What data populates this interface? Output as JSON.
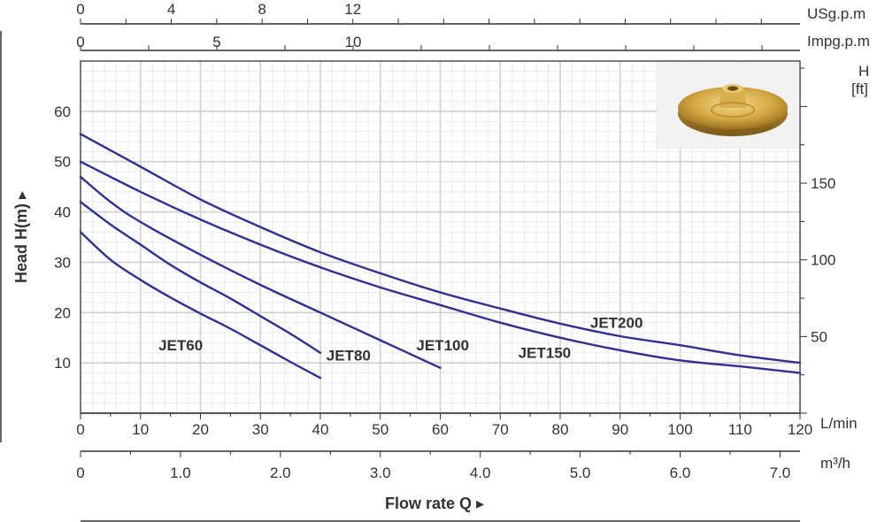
{
  "chart_data": {
    "type": "line",
    "title": "",
    "xlabel": "Flow rate Q",
    "ylabel": "Head H(m)",
    "x_unit": "L/min",
    "xlim": [
      0,
      120
    ],
    "ylim": [
      0,
      70
    ],
    "grid": true,
    "x_ticks": [
      "0",
      "10",
      "20",
      "30",
      "40",
      "50",
      "60",
      "70",
      "80",
      "90",
      "100",
      "110",
      "120"
    ],
    "y_ticks": [
      "10",
      "20",
      "30",
      "40",
      "50",
      "60"
    ],
    "secondary_axes": {
      "usgpm": {
        "unit": "USg.p.m",
        "ticks": [
          "0",
          "4",
          "8",
          "12"
        ]
      },
      "impgpm": {
        "unit": "Impg.p.m",
        "ticks": [
          "0",
          "5",
          "10"
        ]
      },
      "m3h": {
        "unit": "m³/h",
        "ticks": [
          "0",
          "1.0",
          "2.0",
          "3.0",
          "4.0",
          "5.0",
          "6.0",
          "7.0"
        ]
      },
      "head_ft": {
        "unit_line1": "H",
        "unit_line2": "[ft]",
        "ticks": [
          "50",
          "100",
          "150"
        ]
      }
    },
    "series": [
      {
        "name": "JET60",
        "x": [
          0,
          5,
          10,
          15,
          20,
          25,
          30,
          35,
          40
        ],
        "y": [
          36,
          30.5,
          26.5,
          23,
          19.8,
          16.8,
          13.5,
          10.2,
          7
        ]
      },
      {
        "name": "JET80",
        "x": [
          0,
          5,
          10,
          15,
          20,
          25,
          30,
          35,
          40
        ],
        "y": [
          42,
          37.5,
          33.5,
          29.5,
          26,
          22.8,
          19.3,
          15.8,
          12
        ]
      },
      {
        "name": "JET100",
        "x": [
          0,
          5,
          10,
          20,
          30,
          40,
          50,
          60
        ],
        "y": [
          47,
          42,
          38,
          31.5,
          25.5,
          20,
          14.5,
          9
        ]
      },
      {
        "name": "JET150",
        "x": [
          0,
          10,
          20,
          30,
          40,
          50,
          60,
          70,
          80,
          90,
          100,
          110,
          120
        ],
        "y": [
          50,
          44,
          38.5,
          33.5,
          29,
          25,
          21.5,
          18,
          15,
          12.5,
          10.5,
          9.3,
          8
        ]
      },
      {
        "name": "JET200",
        "x": [
          0,
          10,
          20,
          30,
          40,
          50,
          60,
          70,
          80,
          90,
          100,
          110,
          120
        ],
        "y": [
          55.5,
          49,
          42.5,
          37,
          32,
          27.8,
          24,
          20.8,
          17.8,
          15.3,
          13.5,
          11.5,
          10
        ]
      }
    ],
    "labels": [
      "JET60",
      "JET80",
      "JET100",
      "JET150",
      "JET200"
    ]
  },
  "colors": {
    "curve": "#2e3192",
    "grid_major": "#cfcfcf",
    "grid_minor": "#e6e6e6",
    "axis": "#333333"
  },
  "inset_image": "brass-impeller-photo"
}
